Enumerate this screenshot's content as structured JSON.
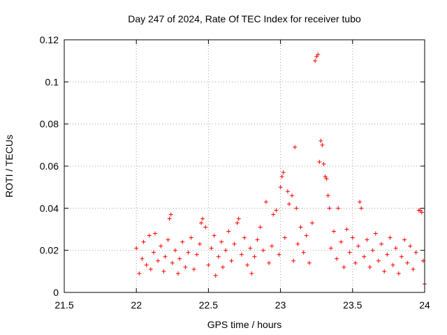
{
  "chart_data": {
    "type": "scatter",
    "title": "Day 247 of 2024, Rate Of TEC Index for receiver tubo",
    "xlabel": "GPS time / hours",
    "ylabel": "ROTI / TECUs",
    "xlim": [
      21.5,
      24
    ],
    "ylim": [
      0,
      0.12
    ],
    "xticks": [
      "21.5",
      "22",
      "22.5",
      "23",
      "23.5",
      "24"
    ],
    "yticks": [
      "0",
      "0.02",
      "0.04",
      "0.06",
      "0.08",
      "0.1",
      "0.12"
    ],
    "grid": true,
    "marker": "plus",
    "color": "#ff0000",
    "series": [
      {
        "points": [
          [
            22.0,
            0.021
          ],
          [
            22.02,
            0.009
          ],
          [
            22.04,
            0.016
          ],
          [
            22.05,
            0.024
          ],
          [
            22.07,
            0.013
          ],
          [
            22.09,
            0.027
          ],
          [
            22.1,
            0.011
          ],
          [
            22.12,
            0.019
          ],
          [
            22.13,
            0.028
          ],
          [
            22.15,
            0.015
          ],
          [
            22.17,
            0.022
          ],
          [
            22.19,
            0.01
          ],
          [
            22.2,
            0.017
          ],
          [
            22.22,
            0.025
          ],
          [
            22.23,
            0.035
          ],
          [
            22.24,
            0.037
          ],
          [
            22.25,
            0.014
          ],
          [
            22.27,
            0.02
          ],
          [
            22.29,
            0.009
          ],
          [
            22.3,
            0.016
          ],
          [
            22.32,
            0.024
          ],
          [
            22.34,
            0.012
          ],
          [
            22.36,
            0.019
          ],
          [
            22.38,
            0.026
          ],
          [
            22.4,
            0.011
          ],
          [
            22.42,
            0.018
          ],
          [
            22.44,
            0.023
          ],
          [
            22.45,
            0.033
          ],
          [
            22.46,
            0.035
          ],
          [
            22.48,
            0.031
          ],
          [
            22.5,
            0.013
          ],
          [
            22.52,
            0.021
          ],
          [
            22.54,
            0.027
          ],
          [
            22.55,
            0.008
          ],
          [
            22.57,
            0.017
          ],
          [
            22.59,
            0.024
          ],
          [
            22.6,
            0.012
          ],
          [
            22.62,
            0.02
          ],
          [
            22.64,
            0.029
          ],
          [
            22.66,
            0.015
          ],
          [
            22.68,
            0.023
          ],
          [
            22.7,
            0.033
          ],
          [
            22.71,
            0.035
          ],
          [
            22.73,
            0.018
          ],
          [
            22.75,
            0.026
          ],
          [
            22.77,
            0.013
          ],
          [
            22.79,
            0.021
          ],
          [
            22.8,
            0.009
          ],
          [
            22.82,
            0.017
          ],
          [
            22.84,
            0.025
          ],
          [
            22.86,
            0.031
          ],
          [
            22.88,
            0.02
          ],
          [
            22.9,
            0.043
          ],
          [
            22.92,
            0.014
          ],
          [
            22.94,
            0.022
          ],
          [
            22.95,
            0.037
          ],
          [
            22.97,
            0.039
          ],
          [
            22.99,
            0.018
          ],
          [
            23.0,
            0.05
          ],
          [
            23.01,
            0.055
          ],
          [
            23.02,
            0.057
          ],
          [
            23.03,
            0.026
          ],
          [
            23.05,
            0.048
          ],
          [
            23.06,
            0.042
          ],
          [
            23.08,
            0.046
          ],
          [
            23.09,
            0.015
          ],
          [
            23.1,
            0.069
          ],
          [
            23.11,
            0.04
          ],
          [
            23.12,
            0.023
          ],
          [
            23.14,
            0.031
          ],
          [
            23.16,
            0.019
          ],
          [
            23.18,
            0.027
          ],
          [
            23.2,
            0.014
          ],
          [
            23.22,
            0.033
          ],
          [
            23.24,
            0.11
          ],
          [
            23.25,
            0.112
          ],
          [
            23.26,
            0.113
          ],
          [
            23.27,
            0.062
          ],
          [
            23.28,
            0.072
          ],
          [
            23.29,
            0.07
          ],
          [
            23.3,
            0.061
          ],
          [
            23.31,
            0.055
          ],
          [
            23.32,
            0.054
          ],
          [
            23.33,
            0.046
          ],
          [
            23.34,
            0.04
          ],
          [
            23.35,
            0.021
          ],
          [
            23.37,
            0.029
          ],
          [
            23.39,
            0.016
          ],
          [
            23.4,
            0.04
          ],
          [
            23.42,
            0.024
          ],
          [
            23.44,
            0.012
          ],
          [
            23.46,
            0.03
          ],
          [
            23.48,
            0.019
          ],
          [
            23.5,
            0.026
          ],
          [
            23.52,
            0.014
          ],
          [
            23.54,
            0.022
          ],
          [
            23.55,
            0.043
          ],
          [
            23.56,
            0.04
          ],
          [
            23.58,
            0.017
          ],
          [
            23.6,
            0.025
          ],
          [
            23.62,
            0.012
          ],
          [
            23.64,
            0.02
          ],
          [
            23.66,
            0.028
          ],
          [
            23.68,
            0.015
          ],
          [
            23.7,
            0.023
          ],
          [
            23.72,
            0.01
          ],
          [
            23.74,
            0.018
          ],
          [
            23.76,
            0.026
          ],
          [
            23.78,
            0.013
          ],
          [
            23.8,
            0.021
          ],
          [
            23.82,
            0.009
          ],
          [
            23.84,
            0.017
          ],
          [
            23.86,
            0.025
          ],
          [
            23.88,
            0.014
          ],
          [
            23.9,
            0.022
          ],
          [
            23.92,
            0.011
          ],
          [
            23.94,
            0.019
          ],
          [
            23.96,
            0.039
          ],
          [
            23.97,
            0.039
          ],
          [
            23.98,
            0.038
          ],
          [
            23.99,
            0.015
          ],
          [
            24.0,
            0.004
          ]
        ]
      }
    ]
  }
}
